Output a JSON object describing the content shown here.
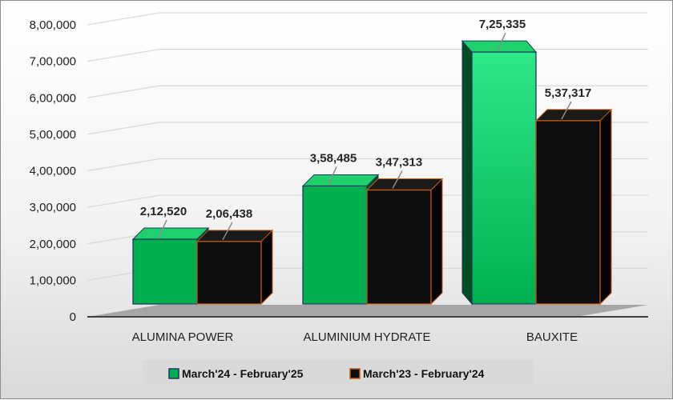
{
  "chart_data": {
    "type": "bar",
    "categories": [
      "ALUMINA POWER",
      "ALUMINIUM HYDRATE",
      "BAUXITE"
    ],
    "series": [
      {
        "name": "March'24 - February'25",
        "values": [
          212520,
          358485,
          725335
        ],
        "labels": [
          "2,12,520",
          "3,58,485",
          "7,25,335"
        ],
        "color": "#00b050",
        "edge_color": "#1f3864"
      },
      {
        "name": "March'23 - February'24",
        "values": [
          206438,
          347313,
          537317
        ],
        "labels": [
          "2,06,438",
          "3,47,313",
          "5,37,317"
        ],
        "color": "#0d0d0d",
        "edge_color": "#c55a11"
      }
    ],
    "y_ticks": [
      0,
      100000,
      200000,
      300000,
      400000,
      500000,
      600000,
      700000,
      800000
    ],
    "y_tick_labels": [
      "0",
      "1,00,000",
      "2,00,000",
      "3,00,000",
      "4,00,000",
      "5,00,000",
      "6,00,000",
      "7,00,000",
      "8,00,000"
    ],
    "ylim": [
      0,
      800000
    ],
    "grid": true,
    "legend_position": "bottom",
    "style": "3d-clustered-column"
  }
}
